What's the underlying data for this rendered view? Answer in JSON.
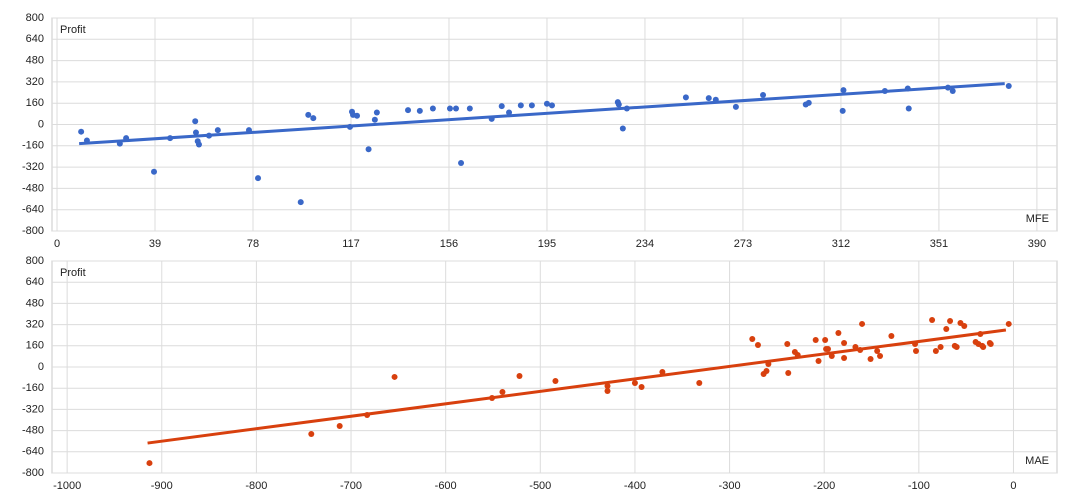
{
  "chart_data": [
    {
      "type": "scatter",
      "y_label": "Profit",
      "x_label": "MFE",
      "color": "#3a68c8",
      "grid": true,
      "xlim": [
        -2,
        398
      ],
      "xticks": [
        0,
        39,
        78,
        117,
        156,
        195,
        234,
        273,
        312,
        351,
        390
      ],
      "ylim": [
        -800,
        800
      ],
      "yticks": [
        -800,
        -640,
        -480,
        -320,
        -160,
        0,
        160,
        320,
        480,
        640,
        800
      ],
      "x": [
        9.6,
        11.9,
        25,
        27.5,
        38.6,
        45,
        55,
        55.3,
        56,
        56.5,
        60.5,
        64,
        76.4,
        80,
        97,
        100,
        102,
        116.6,
        117.4,
        117.8,
        119.4,
        124,
        126.5,
        127.3,
        139.7,
        144.4,
        149.6,
        156.4,
        158.8,
        160.8,
        164.3,
        173,
        177,
        179.9,
        184.6,
        189,
        195,
        197,
        223.2,
        223.6,
        225.2,
        226.8,
        250.3,
        259.4,
        262.2,
        270.2,
        281,
        298,
        299.2,
        312.7,
        313,
        329.5,
        338.6,
        339,
        354.6,
        356.5,
        378.8
      ],
      "values": [
        -54,
        -120,
        -144,
        -102,
        -355,
        -102,
        24,
        -60,
        -126,
        -150,
        -84,
        -42,
        -42,
        -403,
        -583,
        72,
        48,
        -18,
        96,
        72,
        66,
        -186,
        36,
        90,
        108,
        102,
        120,
        120,
        120,
        -289,
        120,
        42,
        138,
        90,
        144,
        144,
        156,
        144,
        168,
        150,
        -30,
        120,
        204,
        198,
        186,
        132,
        222,
        150,
        162,
        102,
        258,
        252,
        270,
        120,
        277,
        252,
        289
      ],
      "trend": {
        "x": [
          8.8,
          377.2
        ],
        "values": [
          -144,
          307
        ]
      }
    },
    {
      "type": "scatter",
      "y_label": "Profit",
      "x_label": "MAE",
      "color": "#d8400e",
      "grid": true,
      "xlim": [
        -1016,
        46
      ],
      "xticks": [
        -1000,
        -900,
        -800,
        -700,
        -600,
        -500,
        -400,
        -300,
        -200,
        -100,
        0
      ],
      "ylim": [
        -800,
        800
      ],
      "yticks": [
        -800,
        -640,
        -480,
        -320,
        -160,
        0,
        160,
        320,
        480,
        640,
        800
      ],
      "x": [
        -913,
        -742,
        -712,
        -683,
        -654,
        -551,
        -540,
        -522,
        -484,
        -429,
        -429,
        -400,
        -393,
        -371,
        -332,
        -276,
        -270,
        -264,
        -261,
        -259,
        -239,
        -238,
        -231,
        -228,
        -209,
        -206,
        -199,
        -198,
        -196,
        -192,
        -185,
        -179,
        -179,
        -167,
        -162,
        -160,
        -151,
        -144,
        -141,
        -129,
        -104,
        -103,
        -86,
        -82,
        -77,
        -71,
        -67,
        -62,
        -60,
        -56,
        -52,
        -40,
        -37,
        -35,
        -33,
        -32,
        -25,
        -24,
        -5
      ],
      "values": [
        -725,
        -506,
        -445,
        -362,
        -75,
        -234,
        -189,
        -68,
        -106,
        -143,
        -181,
        -121,
        -151,
        -38,
        -121,
        211,
        166,
        -53,
        -30,
        23,
        174,
        -45,
        113,
        91,
        204,
        45,
        204,
        136,
        136,
        83,
        257,
        181,
        68,
        151,
        128,
        325,
        60,
        121,
        83,
        234,
        174,
        121,
        355,
        121,
        151,
        287,
        347,
        159,
        151,
        332,
        309,
        189,
        174,
        249,
        159,
        151,
        181,
        174,
        325
      ],
      "trend": {
        "x": [
          -915,
          -8
        ],
        "values": [
          -574,
          279
        ]
      }
    }
  ]
}
